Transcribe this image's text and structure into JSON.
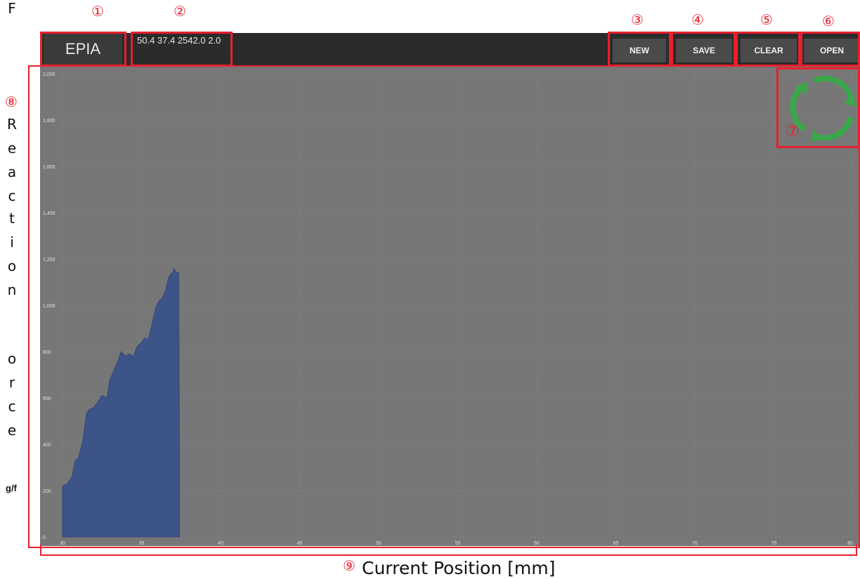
{
  "app": {
    "title": "EPIA",
    "readout": "50.4 37.4 2542.0 2.0"
  },
  "toolbar": {
    "buttons": [
      "NEW",
      "SAVE",
      "CLEAR",
      "OPEN"
    ]
  },
  "callouts": [
    "①",
    "②",
    "③",
    "④",
    "⑤",
    "⑥",
    "⑦",
    "⑧",
    "⑨"
  ],
  "y_axis_title": [
    "R",
    "e",
    "a",
    "c",
    "t",
    "i",
    "o",
    "n",
    "",
    "F",
    "o",
    "r",
    "c",
    "e"
  ],
  "y_axis_unit": "g/f",
  "x_axis_title": "Current Position [mm]",
  "colors": {
    "appbar": "#2b2b2b",
    "plot_bg": "#777777",
    "fill": "#3c5488",
    "callout": "#e8202e",
    "spinner": "#3aa84a"
  },
  "icons": {
    "status": "loading-spinner-icon"
  },
  "chart_data": {
    "type": "area",
    "title": "",
    "xlabel": "Current Position [mm]",
    "ylabel": "Reaction Force g/f",
    "xlim": [
      30,
      80
    ],
    "ylim": [
      0,
      2000
    ],
    "x_ticks": [
      "30",
      "35",
      "40",
      "45",
      "50",
      "55",
      "60",
      "65",
      "70",
      "75",
      "80"
    ],
    "y_ticks": [
      "0",
      "200",
      "400",
      "600",
      "800",
      "1,000",
      "1,200",
      "1,400",
      "1,600",
      "1,800",
      "2,000"
    ],
    "grid": true,
    "series": [
      {
        "x": [
          30.0,
          30.3,
          30.6,
          30.8,
          31.0,
          31.3,
          31.5,
          31.7,
          32.0,
          32.3,
          32.5,
          32.8,
          33.0,
          33.2,
          33.5,
          33.7,
          34.0,
          34.2,
          34.5,
          34.7,
          35.0,
          35.2,
          35.4,
          35.6,
          35.9,
          36.1,
          36.3,
          36.5,
          36.7,
          36.9,
          37.0,
          37.05,
          37.2,
          37.35,
          37.4
        ],
        "y": [
          220,
          230,
          260,
          330,
          340,
          420,
          530,
          550,
          560,
          590,
          610,
          600,
          680,
          710,
          760,
          800,
          780,
          790,
          780,
          820,
          840,
          860,
          850,
          900,
          990,
          1020,
          1030,
          1060,
          1120,
          1140,
          1140,
          1160,
          1140,
          1140,
          280
        ]
      }
    ]
  }
}
